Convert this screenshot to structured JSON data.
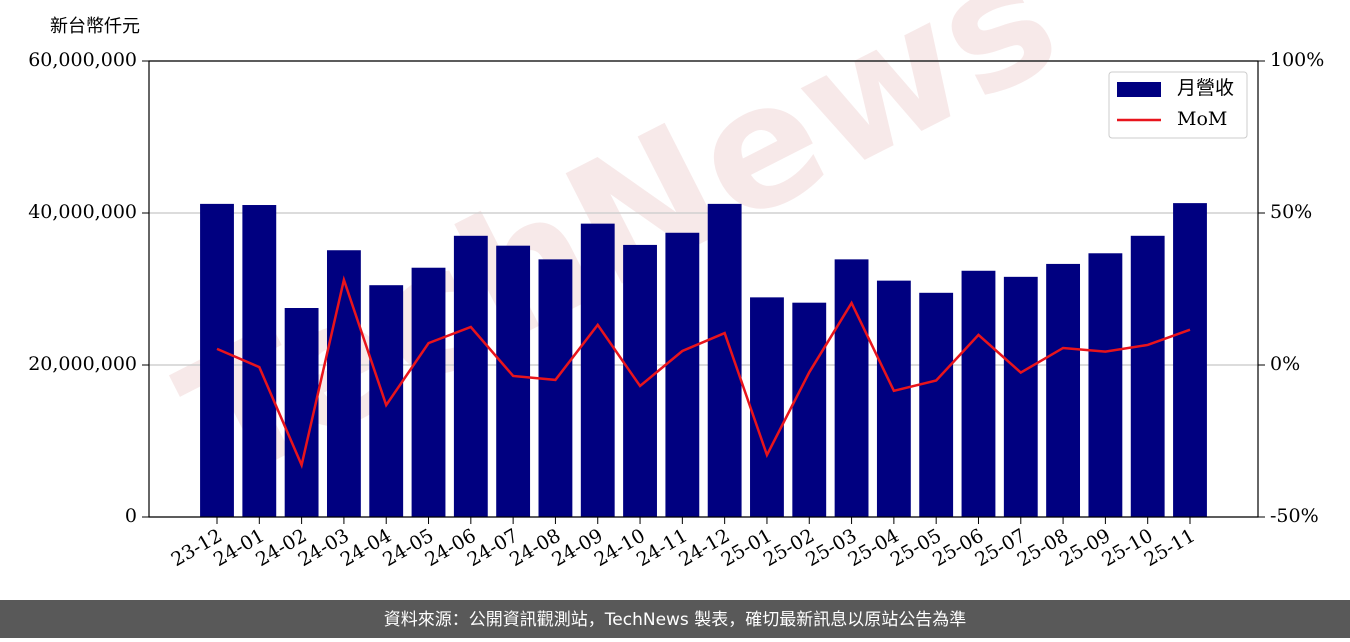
{
  "chart_data": {
    "type": "bar",
    "ylabel": "新台幣仟元",
    "watermark": "TechNews",
    "categories": [
      "23-12",
      "24-01",
      "24-02",
      "24-03",
      "24-04",
      "24-05",
      "24-06",
      "24-07",
      "24-08",
      "24-09",
      "24-10",
      "24-11",
      "24-12",
      "25-01",
      "25-02",
      "25-03",
      "25-04",
      "25-05",
      "25-06",
      "25-07",
      "25-08",
      "25-09",
      "25-10",
      "25-11"
    ],
    "series": [
      {
        "name": "月營收",
        "type": "bar",
        "color": "#000080",
        "values": [
          41200000,
          41050000,
          27500000,
          35100000,
          30500000,
          32800000,
          37000000,
          35700000,
          33900000,
          38600000,
          35800000,
          37400000,
          41200000,
          28900000,
          28200000,
          33900000,
          31100000,
          29500000,
          32400000,
          31600000,
          33300000,
          34700000,
          37000000,
          41300000
        ]
      },
      {
        "name": "MoM",
        "type": "line",
        "axis": "y2",
        "color": "#e8141c",
        "values": [
          5.3,
          -0.7,
          -32.9,
          28,
          -13.2,
          7.2,
          12.5,
          -3.6,
          -4.9,
          13.2,
          -6.9,
          4.6,
          10.5,
          -29.6,
          -2.4,
          20.4,
          -8.5,
          -5.1,
          9.9,
          -2.5,
          5.6,
          4.4,
          6.6,
          11.6
        ]
      }
    ],
    "ylim": [
      0,
      60000000
    ],
    "yticks": [
      0,
      {
        "value": 20000000,
        "label": "20,000,000"
      },
      {
        "value": 40000000,
        "label": "40,000,000"
      },
      {
        "value": 60000000,
        "label": "60,000,000"
      }
    ],
    "y2lim": [
      -50,
      100
    ],
    "y2ticks": [
      {
        "value": -50,
        "label": "-50%"
      },
      {
        "value": 0,
        "label": "0%"
      },
      {
        "value": 50,
        "label": "50%"
      },
      {
        "value": 100,
        "label": "100%"
      }
    ],
    "grid": true,
    "legend": "upper-right"
  },
  "footer": "資料來源：公開資訊觀測站，TechNews 製表，確切最新訊息以原站公告為準"
}
